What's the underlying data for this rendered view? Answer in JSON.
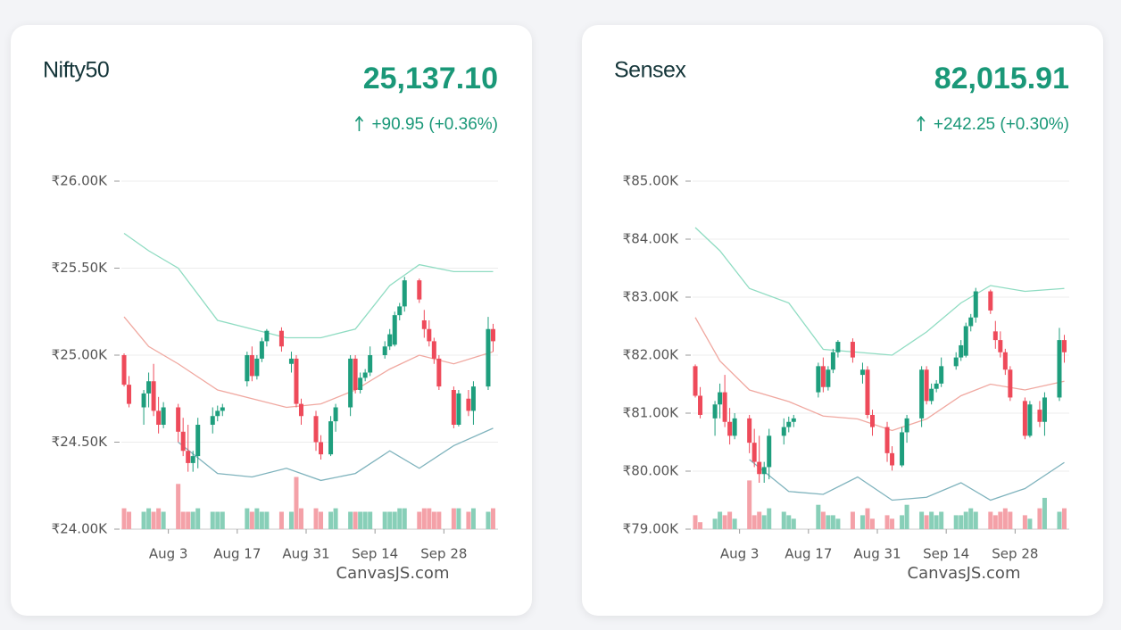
{
  "chart_data": [
    {
      "type": "candlestick",
      "title": "Nifty50",
      "price": "25,137.10",
      "change": "+90.95 (+0.36%)",
      "credit": "CanvasJS.com",
      "x": [
        "07-25",
        "07-26",
        "07-29",
        "07-30",
        "07-31",
        "08-01",
        "08-02",
        "08-05",
        "08-06",
        "08-07",
        "08-08",
        "08-09",
        "08-12",
        "08-13",
        "08-14",
        "08-19",
        "08-20",
        "08-21",
        "08-22",
        "08-23",
        "08-26",
        "08-28",
        "08-29",
        "08-30",
        "09-02",
        "09-03",
        "09-05",
        "09-06",
        "09-09",
        "09-10",
        "09-11",
        "09-12",
        "09-13",
        "09-16",
        "09-17",
        "09-18",
        "09-19",
        "09-20",
        "09-23",
        "09-24",
        "09-25",
        "09-26",
        "09-27",
        "09-30",
        "10-01",
        "10-03",
        "10-04",
        "10-07",
        "10-08"
      ],
      "ohlc": [
        [
          25000,
          25010,
          24820,
          24830
        ],
        [
          24830,
          24880,
          24700,
          24720
        ],
        [
          24700,
          24800,
          24600,
          24780
        ],
        [
          24780,
          24900,
          24700,
          24850
        ],
        [
          24850,
          24950,
          24650,
          24680
        ],
        [
          24680,
          24760,
          24550,
          24600
        ],
        [
          24600,
          24730,
          24580,
          24700
        ],
        [
          24700,
          24720,
          24500,
          24560
        ],
        [
          24560,
          24640,
          24420,
          24450
        ],
        [
          24450,
          24600,
          24330,
          24380
        ],
        [
          24380,
          24450,
          24330,
          24420
        ],
        [
          24420,
          24640,
          24350,
          24600
        ],
        [
          24600,
          24700,
          24550,
          24650
        ],
        [
          24650,
          24710,
          24620,
          24680
        ],
        [
          24680,
          24720,
          24650,
          24700
        ],
        [
          24850,
          25020,
          24820,
          25000
        ],
        [
          25000,
          25050,
          24850,
          24880
        ],
        [
          24880,
          25000,
          24860,
          24980
        ],
        [
          24980,
          25100,
          24960,
          25080
        ],
        [
          25080,
          25150,
          25050,
          25140
        ],
        [
          25140,
          25160,
          25020,
          25050
        ],
        [
          24950,
          25020,
          24900,
          24980
        ],
        [
          24980,
          25000,
          24700,
          24720
        ],
        [
          24720,
          24750,
          24600,
          24650
        ],
        [
          24650,
          24680,
          24450,
          24500
        ],
        [
          24500,
          24540,
          24400,
          24430
        ],
        [
          24430,
          24650,
          24420,
          24620
        ],
        [
          24620,
          24720,
          24560,
          24700
        ],
        [
          24700,
          25000,
          24650,
          24980
        ],
        [
          24980,
          25000,
          24780,
          24800
        ],
        [
          24800,
          24900,
          24780,
          24870
        ],
        [
          24870,
          24920,
          24850,
          24900
        ],
        [
          24900,
          25050,
          24880,
          25000
        ],
        [
          25000,
          25080,
          24980,
          25050
        ],
        [
          25050,
          25150,
          25030,
          25120
        ],
        [
          25060,
          25250,
          25050,
          25230
        ],
        [
          25230,
          25300,
          25200,
          25280
        ],
        [
          25280,
          25450,
          25250,
          25430
        ],
        [
          25430,
          25440,
          25300,
          25320
        ],
        [
          25200,
          25260,
          25100,
          25150
        ],
        [
          25150,
          25200,
          25050,
          25080
        ],
        [
          25080,
          25100,
          24950,
          24980
        ],
        [
          24980,
          25000,
          24800,
          24820
        ],
        [
          24800,
          24820,
          24580,
          24600
        ],
        [
          24600,
          24800,
          24590,
          24780
        ],
        [
          24750,
          24800,
          24650,
          24680
        ],
        [
          24680,
          24850,
          24600,
          24820
        ],
        [
          24820,
          25220,
          24800,
          25150
        ],
        [
          25150,
          25180,
          25020,
          25080
        ]
      ],
      "volume": {
        "axis": "y2",
        "values": [
          6,
          5,
          5,
          6,
          5,
          6,
          5,
          13,
          5,
          5,
          5,
          6,
          5,
          5,
          5,
          6,
          5,
          6,
          5,
          5,
          5,
          5,
          15,
          6,
          6,
          5,
          5,
          6,
          5,
          5,
          5,
          5,
          5,
          5,
          5,
          5,
          6,
          6,
          5,
          6,
          6,
          5,
          5,
          6,
          6,
          5,
          6,
          5,
          6
        ]
      },
      "y2lim": [
        0,
        100
      ],
      "up_color": "#1e9e7d",
      "down_color": "#ee4a5a",
      "up_vol_color": "#88cfb8",
      "down_vol_color": "#f4a1a8",
      "band_x": [
        "07-25",
        "07-30",
        "08-05",
        "08-13",
        "08-20",
        "08-27",
        "09-03",
        "09-10",
        "09-17",
        "09-23",
        "09-30",
        "10-08"
      ],
      "bands": [
        {
          "color": "#8fdcc2",
          "values": [
            25700,
            25600,
            25500,
            25200,
            25150,
            25100,
            25100,
            25150,
            25400,
            25520,
            25480,
            25480
          ]
        },
        {
          "color": "#f0a8a0",
          "values": [
            25220,
            25050,
            24950,
            24800,
            24750,
            24700,
            24720,
            24800,
            24920,
            25000,
            24950,
            25020
          ]
        },
        {
          "color": "#7fb3bd",
          "values": [
            null,
            null,
            24500,
            24320,
            24300,
            24350,
            24280,
            24320,
            24450,
            24350,
            24480,
            24580
          ]
        }
      ],
      "xlim": [
        "07-23",
        "10-09"
      ],
      "xticks": [
        {
          "value": "08-03",
          "label": "Aug 3"
        },
        {
          "value": "08-17",
          "label": "Aug 17"
        },
        {
          "value": "08-31",
          "label": "Aug 31"
        },
        {
          "value": "09-14",
          "label": "Sep 14"
        },
        {
          "value": "09-28",
          "label": "Sep 28"
        }
      ],
      "ylim": [
        24000,
        26000
      ],
      "yticks": [
        {
          "value": 24000,
          "label": "₹24.00K"
        },
        {
          "value": 24500,
          "label": "₹24.50K"
        },
        {
          "value": 25000,
          "label": "₹25.00K"
        },
        {
          "value": 25500,
          "label": "₹25.50K"
        },
        {
          "value": 26000,
          "label": "₹26.00K"
        }
      ]
    },
    {
      "type": "candlestick",
      "title": "Sensex",
      "price": "82,015.91",
      "change": "+242.25 (+0.30%)",
      "credit": "CanvasJS.com",
      "x": [
        "07-25",
        "07-26",
        "07-29",
        "07-30",
        "07-31",
        "08-01",
        "08-02",
        "08-05",
        "08-06",
        "08-07",
        "08-08",
        "08-09",
        "08-12",
        "08-13",
        "08-14",
        "08-19",
        "08-20",
        "08-21",
        "08-22",
        "08-23",
        "08-26",
        "08-28",
        "08-29",
        "08-30",
        "09-02",
        "09-03",
        "09-05",
        "09-06",
        "09-09",
        "09-10",
        "09-11",
        "09-12",
        "09-13",
        "09-16",
        "09-17",
        "09-18",
        "09-19",
        "09-20",
        "09-23",
        "09-24",
        "09-25",
        "09-26",
        "09-27",
        "09-30",
        "10-01",
        "10-03",
        "10-04",
        "10-07",
        "10-08"
      ],
      "ohlc": [
        [
          81810,
          81840,
          81270,
          81300
        ],
        [
          81300,
          81450,
          80910,
          80970
        ],
        [
          80910,
          81210,
          80610,
          81150
        ],
        [
          81150,
          81510,
          80910,
          81360
        ],
        [
          81360,
          81660,
          80760,
          80850
        ],
        [
          80850,
          81090,
          80460,
          80610
        ],
        [
          80610,
          81000,
          80550,
          80910
        ],
        [
          80910,
          80970,
          80310,
          80490
        ],
        [
          80490,
          80730,
          80070,
          80160
        ],
        [
          80160,
          80610,
          79800,
          79950
        ],
        [
          79950,
          80160,
          79800,
          80070
        ],
        [
          80070,
          80730,
          79860,
          80610
        ],
        [
          80610,
          80910,
          80460,
          80760
        ],
        [
          80760,
          80940,
          80670,
          80850
        ],
        [
          80850,
          80970,
          80760,
          80910
        ],
        [
          81360,
          81870,
          81270,
          81810
        ],
        [
          81810,
          81960,
          81360,
          81450
        ],
        [
          81450,
          81810,
          81390,
          81750
        ],
        [
          81750,
          82110,
          81690,
          82050
        ],
        [
          82050,
          82260,
          81960,
          82230
        ],
        [
          82230,
          82290,
          81870,
          81960
        ],
        [
          81660,
          81870,
          81510,
          81750
        ],
        [
          81750,
          81810,
          80910,
          80970
        ],
        [
          80970,
          81060,
          80610,
          80760
        ],
        [
          80760,
          80850,
          80160,
          80310
        ],
        [
          80310,
          80430,
          80010,
          80100
        ],
        [
          80100,
          80760,
          80070,
          80670
        ],
        [
          80670,
          80970,
          80490,
          80910
        ],
        [
          80910,
          81810,
          80760,
          81750
        ],
        [
          81750,
          81810,
          81150,
          81210
        ],
        [
          81210,
          81510,
          81150,
          81420
        ],
        [
          81420,
          81570,
          81360,
          81510
        ],
        [
          81510,
          81960,
          81450,
          81810
        ],
        [
          81810,
          82050,
          81750,
          81960
        ],
        [
          81960,
          82260,
          81900,
          82170
        ],
        [
          81990,
          82560,
          81960,
          82500
        ],
        [
          82500,
          82710,
          82410,
          82650
        ],
        [
          82650,
          83160,
          82560,
          83100
        ],
        [
          83100,
          83130,
          82710,
          82770
        ],
        [
          82410,
          82590,
          82110,
          82260
        ],
        [
          82260,
          82410,
          81960,
          82050
        ],
        [
          82050,
          82110,
          81660,
          81750
        ],
        [
          81750,
          81810,
          81210,
          81270
        ],
        [
          81210,
          81270,
          80550,
          80610
        ],
        [
          80610,
          81210,
          80580,
          81150
        ],
        [
          81060,
          81210,
          80760,
          80850
        ],
        [
          80850,
          81360,
          80610,
          81270
        ],
        [
          81270,
          82470,
          81210,
          82260
        ],
        [
          82260,
          82350,
          81870,
          82050
        ]
      ],
      "volume": {
        "axis": "y2",
        "values": [
          4,
          2,
          3,
          5,
          4,
          5,
          3,
          14,
          4,
          5,
          4,
          6,
          5,
          4,
          3,
          7,
          5,
          4,
          4,
          3,
          5,
          4,
          6,
          3,
          4,
          3,
          4,
          7,
          5,
          4,
          5,
          4,
          5,
          4,
          4,
          5,
          6,
          5,
          5,
          4,
          5,
          6,
          5,
          4,
          3,
          6,
          9,
          5,
          6
        ]
      },
      "y2lim": [
        0,
        100
      ],
      "up_color": "#1e9e7d",
      "down_color": "#ee4a5a",
      "up_vol_color": "#88cfb8",
      "down_vol_color": "#f4a1a8",
      "band_x": [
        "07-25",
        "07-30",
        "08-05",
        "08-13",
        "08-20",
        "08-27",
        "09-03",
        "09-10",
        "09-17",
        "09-23",
        "09-30",
        "10-08"
      ],
      "bands": [
        {
          "color": "#8fdcc2",
          "values": [
            84200,
            83800,
            83150,
            82900,
            82100,
            82050,
            82000,
            82400,
            82900,
            83200,
            83100,
            83150
          ]
        },
        {
          "color": "#f0a8a0",
          "values": [
            82650,
            81900,
            81400,
            81200,
            80950,
            80900,
            80700,
            80900,
            81300,
            81500,
            81400,
            81550
          ]
        },
        {
          "color": "#7fb3bd",
          "values": [
            null,
            null,
            80200,
            79650,
            79600,
            79900,
            79500,
            79550,
            79800,
            79500,
            79700,
            80150
          ]
        }
      ],
      "xlim": [
        "07-23",
        "10-09"
      ],
      "xticks": [
        {
          "value": "08-03",
          "label": "Aug 3"
        },
        {
          "value": "08-17",
          "label": "Aug 17"
        },
        {
          "value": "08-31",
          "label": "Aug 31"
        },
        {
          "value": "09-14",
          "label": "Sep 14"
        },
        {
          "value": "09-28",
          "label": "Sep 28"
        }
      ],
      "ylim": [
        79000,
        85000
      ],
      "yticks": [
        {
          "value": 79000,
          "label": "₹79.00K"
        },
        {
          "value": 80000,
          "label": "₹80.00K"
        },
        {
          "value": 81000,
          "label": "₹81.00K"
        },
        {
          "value": 82000,
          "label": "₹82.00K"
        },
        {
          "value": 83000,
          "label": "₹83.00K"
        },
        {
          "value": 84000,
          "label": "₹84.00K"
        },
        {
          "value": 85000,
          "label": "₹85.00K"
        }
      ]
    }
  ]
}
